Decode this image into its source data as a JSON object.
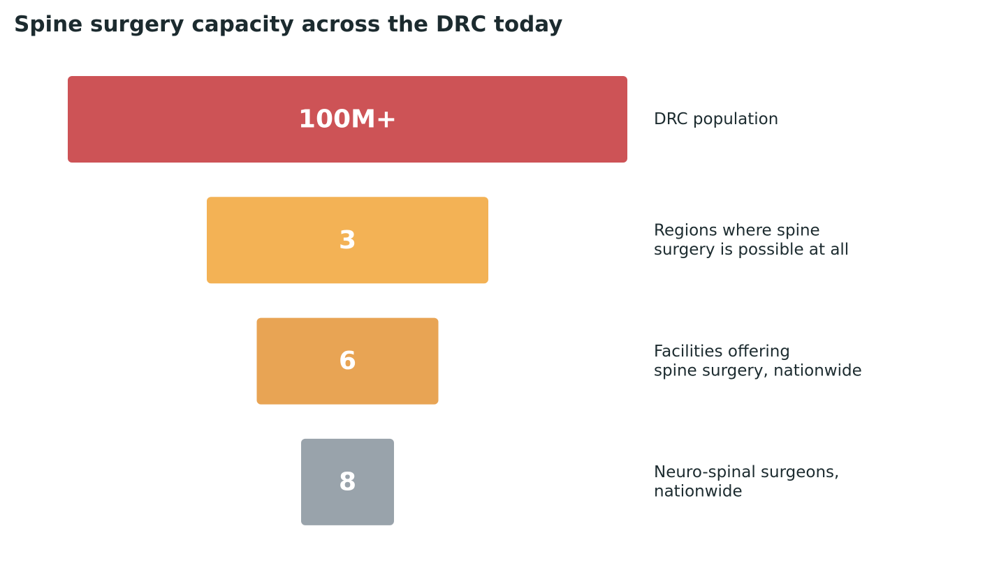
{
  "chart_data": {
    "type": "bar",
    "title": "Spine surgery capacity across the DRC today",
    "layout": "funnel",
    "stages": [
      {
        "value_label": "100M+",
        "label_lines": [
          "DRC population"
        ],
        "color": "#cd5356"
      },
      {
        "value_label": "3",
        "label_lines": [
          "Regions where spine",
          "surgery is possible at all"
        ],
        "color": "#f3b255"
      },
      {
        "value_label": "6",
        "label_lines": [
          "Facilities offering",
          "spine surgery, nationwide"
        ],
        "color": "#e8a454"
      },
      {
        "value_label": "8",
        "label_lines": [
          "Neuro-spinal surgeons,",
          "nationwide"
        ],
        "color": "#99a3ab"
      }
    ],
    "text_color": "#1c2b2f"
  }
}
